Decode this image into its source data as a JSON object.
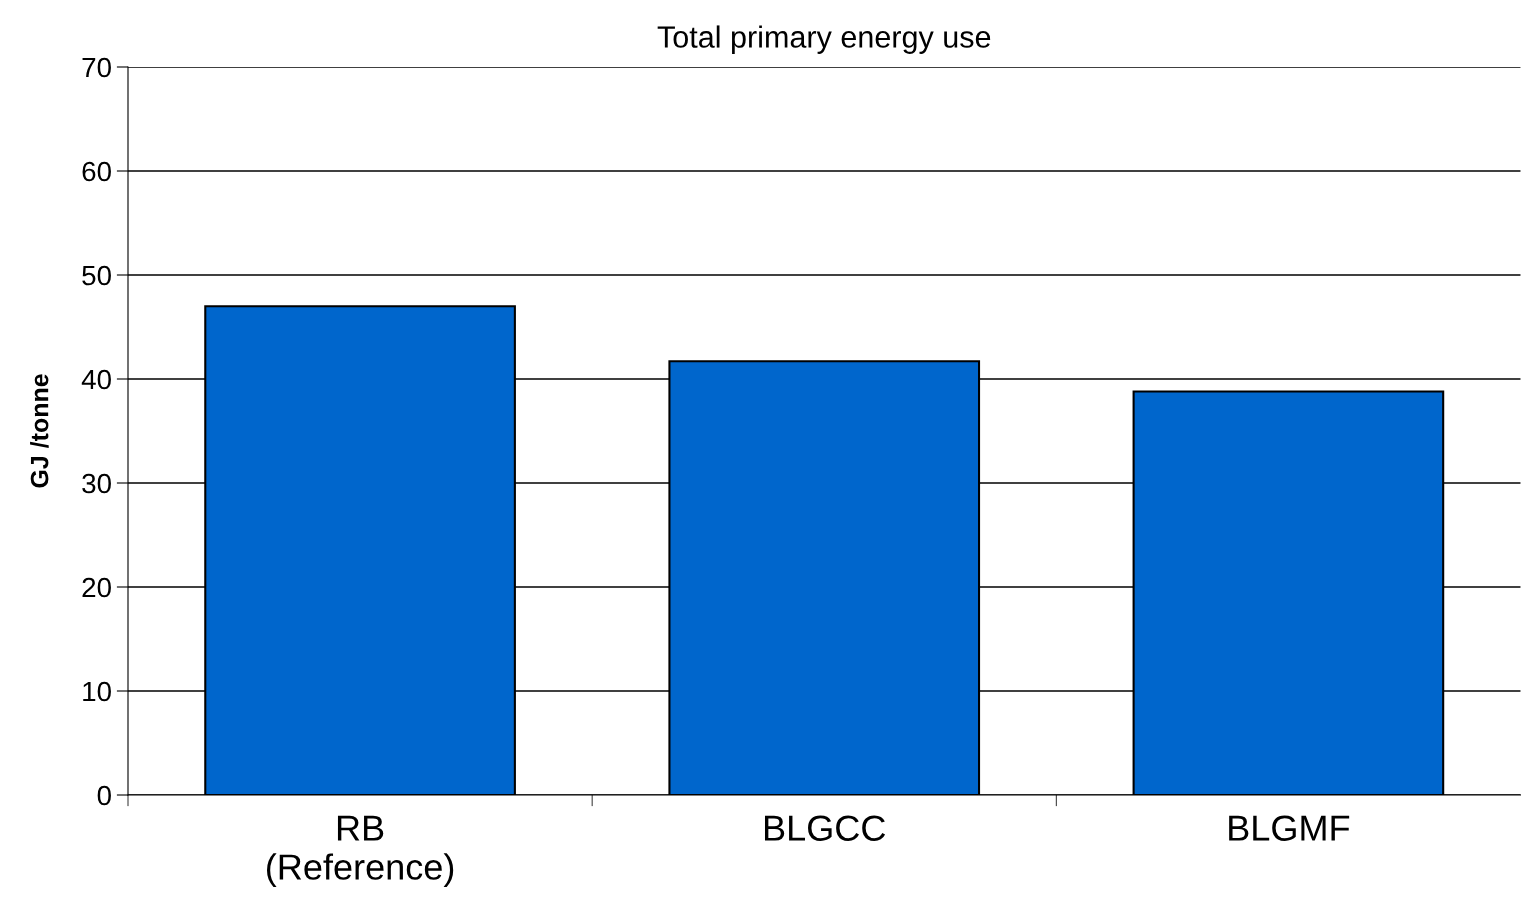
{
  "chart_data": {
    "type": "bar",
    "title": "Total primary energy use",
    "ylabel": "GJ /tonne",
    "categories": [
      "RB\n(Reference)",
      "BLGCC",
      "BLGMF"
    ],
    "values": [
      47.0,
      41.7,
      38.8
    ],
    "color": "#0066cc",
    "ylim": [
      0,
      70
    ],
    "yticks": [
      0,
      10,
      20,
      30,
      40,
      50,
      60,
      70
    ],
    "grid": "y"
  }
}
